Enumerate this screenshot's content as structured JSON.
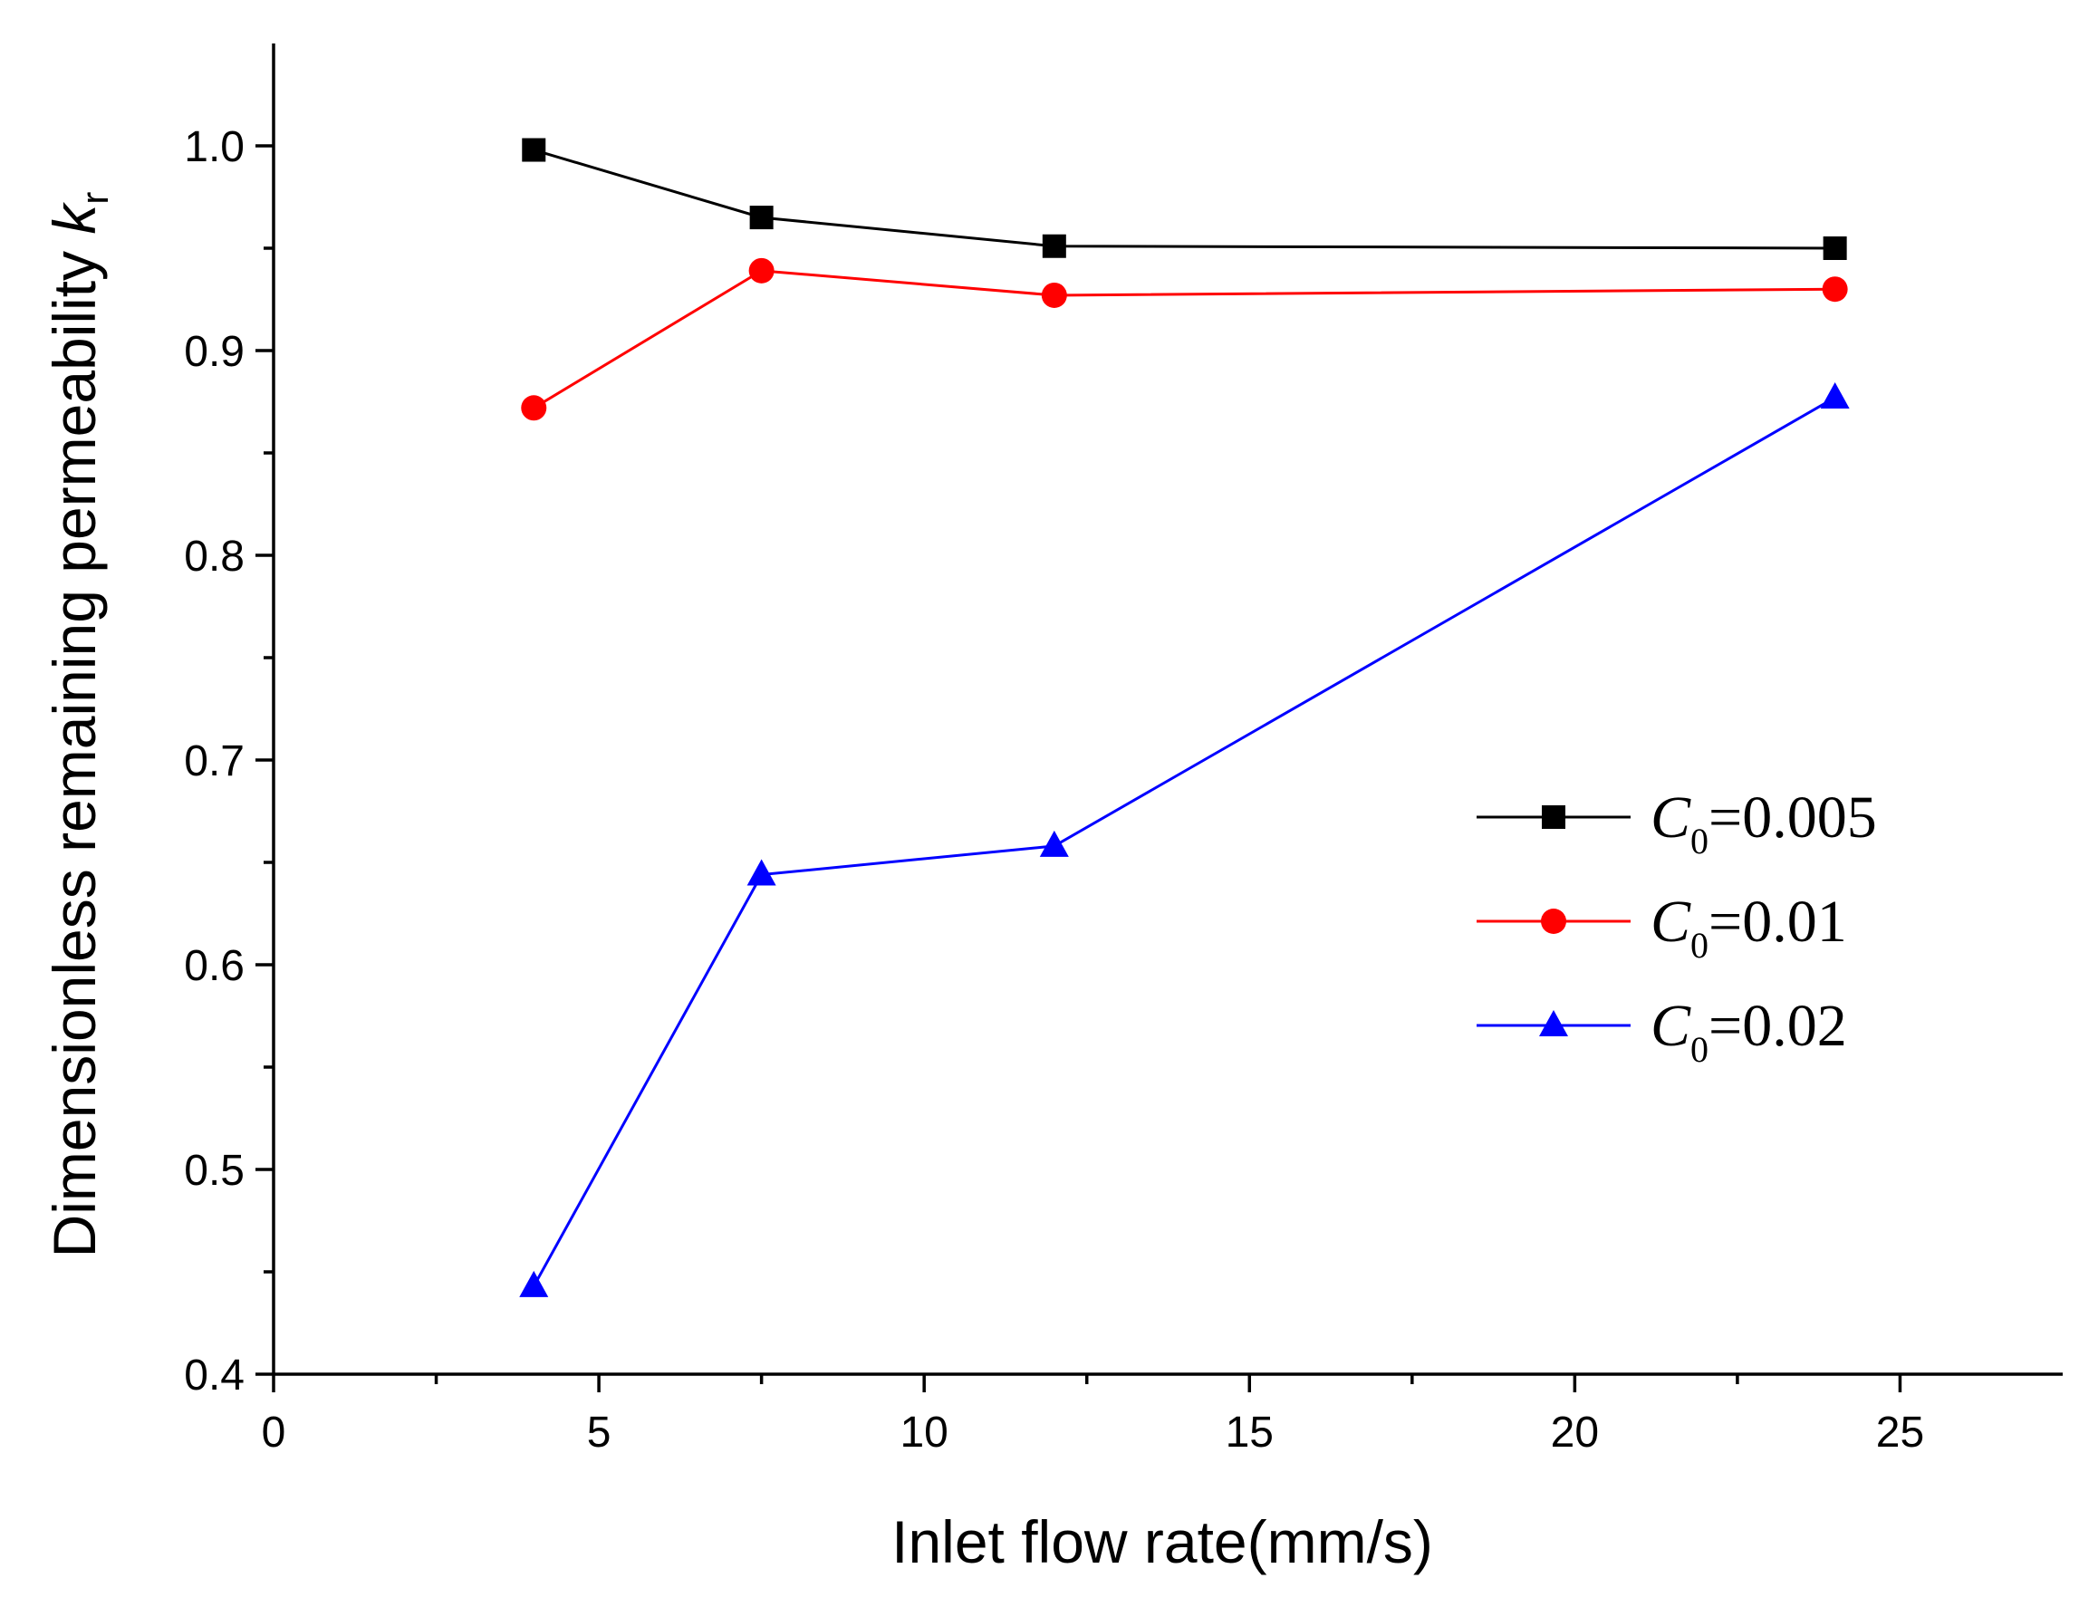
{
  "chart_data": {
    "type": "line",
    "title": "",
    "xlabel": "Inlet flow rate(mm/s)",
    "ylabel": {
      "main": "Dimensionless remaining permeability ",
      "italic": "k",
      "sub": "r"
    },
    "xlim": [
      0,
      27.5
    ],
    "ylim": [
      0.4,
      1.05
    ],
    "x_ticks": [
      "0",
      "5",
      "10",
      "15",
      "20",
      "25"
    ],
    "x_tick_values": [
      0,
      5,
      10,
      15,
      20,
      25
    ],
    "y_ticks": [
      "0.4",
      "0.5",
      "0.6",
      "0.7",
      "0.8",
      "0.9",
      "1.0"
    ],
    "y_tick_values": [
      0.4,
      0.5,
      0.6,
      0.7,
      0.8,
      0.9,
      1.0
    ],
    "x": [
      4,
      7.5,
      12,
      24
    ],
    "legend_position": "center-right",
    "series": [
      {
        "name": "C0=0.005",
        "label_var": "C",
        "label_sub": "0",
        "label_val": "=0.005",
        "marker": "square",
        "color": "#000000",
        "values": [
          0.998,
          0.965,
          0.951,
          0.95
        ]
      },
      {
        "name": "C0=0.01",
        "label_var": "C",
        "label_sub": "0",
        "label_val": "=0.01",
        "marker": "circle",
        "color": "#ff0000",
        "values": [
          0.872,
          0.939,
          0.927,
          0.93
        ]
      },
      {
        "name": "C0=0.02",
        "label_var": "C",
        "label_sub": "0",
        "label_val": "=0.02",
        "marker": "triangle",
        "color": "#0000ff",
        "values": [
          0.443,
          0.644,
          0.658,
          0.877
        ]
      }
    ]
  }
}
